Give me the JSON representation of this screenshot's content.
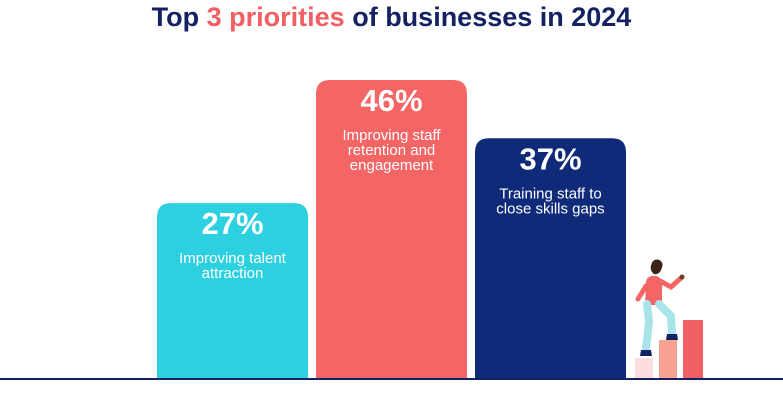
{
  "title": {
    "prefix": "Top ",
    "accent": "3 priorities",
    "suffix": " of businesses in 2024"
  },
  "colors": {
    "title": "#142264",
    "accent": "#f05f63",
    "baseline": "#142264"
  },
  "chart_data": {
    "type": "bar",
    "title": "Top 3 priorities of businesses in 2024",
    "unit": "%",
    "grid": false,
    "ylim": [
      0,
      50
    ],
    "series": [
      {
        "values": [
          27,
          46,
          37
        ],
        "value_labels": [
          "27%",
          "46%",
          "37%"
        ],
        "category_labels": [
          [
            "Improving talent",
            "attraction"
          ],
          [
            "Improving staff",
            "retention and",
            "engagement"
          ],
          [
            "Training staff to",
            "close skills gaps"
          ]
        ],
        "colors": [
          "#2dd0e0",
          "#f46566",
          "#0f2a78"
        ]
      }
    ]
  }
}
